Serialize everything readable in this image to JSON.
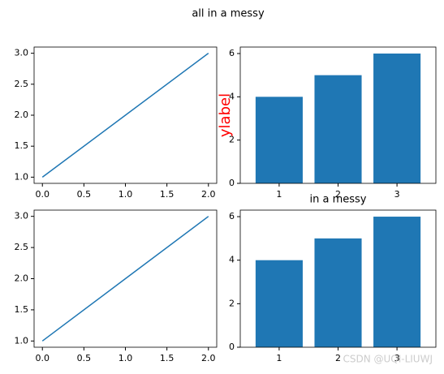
{
  "title": "all in a messy",
  "watermark": "CSDN @UQI-LIUWJ",
  "chart_data": [
    {
      "type": "line",
      "x": [
        0,
        1,
        2
      ],
      "series": [
        {
          "color": "#1f77b4",
          "values": [
            1,
            2,
            3
          ]
        }
      ],
      "xlim": [
        -0.1,
        2.1
      ],
      "ylim": [
        0.9,
        3.1
      ],
      "xticks": [
        {
          "value": 0,
          "label": "0.0"
        },
        {
          "value": 0.5,
          "label": "0.5"
        },
        {
          "value": 1,
          "label": "1.0"
        },
        {
          "value": 1.5,
          "label": "1.5"
        },
        {
          "value": 2,
          "label": "2.0"
        }
      ],
      "yticks": [
        {
          "value": 1,
          "label": "1.0"
        },
        {
          "value": 1.5,
          "label": "1.5"
        },
        {
          "value": 2,
          "label": "2.0"
        },
        {
          "value": 2.5,
          "label": "2.5"
        },
        {
          "value": 3,
          "label": "3.0"
        }
      ]
    },
    {
      "type": "bar",
      "x": [
        1,
        2,
        3
      ],
      "values": [
        4,
        5,
        6
      ],
      "color": "#1f77b4",
      "xlim": [
        0.34,
        3.66
      ],
      "ylim": [
        0,
        6.3
      ],
      "xticks": [
        1,
        2,
        3
      ],
      "yticks": [
        0,
        2,
        4,
        6
      ],
      "ylabel": "ylabel",
      "ylabel_color": "red"
    },
    {
      "type": "line",
      "x": [
        0,
        1,
        2
      ],
      "series": [
        {
          "color": "#1f77b4",
          "values": [
            1,
            2,
            3
          ]
        }
      ],
      "xlim": [
        -0.1,
        2.1
      ],
      "ylim": [
        0.9,
        3.1
      ],
      "xticks": [
        {
          "value": 0,
          "label": "0.0"
        },
        {
          "value": 0.5,
          "label": "0.5"
        },
        {
          "value": 1,
          "label": "1.0"
        },
        {
          "value": 1.5,
          "label": "1.5"
        },
        {
          "value": 2,
          "label": "2.0"
        }
      ],
      "yticks": [
        {
          "value": 1,
          "label": "1.0"
        },
        {
          "value": 1.5,
          "label": "1.5"
        },
        {
          "value": 2,
          "label": "2.0"
        },
        {
          "value": 2.5,
          "label": "2.5"
        },
        {
          "value": 3,
          "label": "3.0"
        }
      ]
    },
    {
      "type": "bar",
      "title": "in a messy",
      "x": [
        1,
        2,
        3
      ],
      "values": [
        4,
        5,
        6
      ],
      "color": "#1f77b4",
      "xlim": [
        0.34,
        3.66
      ],
      "ylim": [
        0,
        6.3
      ],
      "xticks": [
        1,
        2,
        3
      ],
      "yticks": [
        0,
        2,
        4,
        6
      ]
    }
  ]
}
